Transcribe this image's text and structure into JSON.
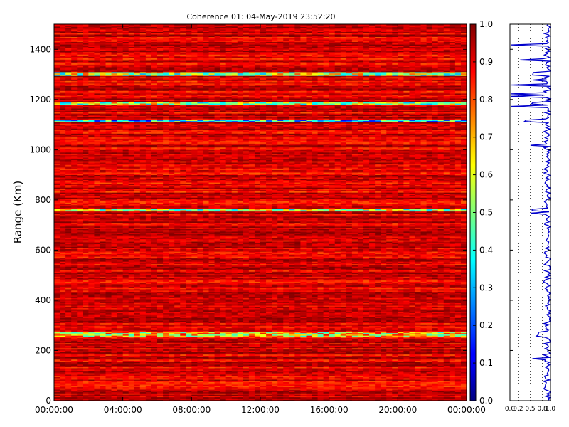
{
  "chart_data": [
    {
      "type": "heatmap",
      "title": "Coherence 01: 04-May-2019 23:52:20",
      "xlabel": "",
      "ylabel": "Range (Km)",
      "xlim": [
        "00:00:00",
        "24:00:00"
      ],
      "ylim": [
        0,
        1500
      ],
      "x_ticks": [
        "00:00:00",
        "04:00:00",
        "08:00:00",
        "12:00:00",
        "16:00:00",
        "20:00:00",
        "00:00:00"
      ],
      "y_ticks": [
        0,
        200,
        400,
        600,
        800,
        1000,
        1200,
        1400
      ],
      "value_range": [
        0.0,
        1.0
      ],
      "colormap": "jet",
      "low_coherence_bands_km": [
        {
          "range_km": [
            1294,
            1308
          ],
          "mean_value": 0.55
        },
        {
          "range_km": [
            1180,
            1192
          ],
          "mean_value": 0.55
        },
        {
          "range_km": [
            1110,
            1122
          ],
          "mean_value": 0.35
        },
        {
          "range_km": [
            755,
            765
          ],
          "mean_value": 0.55
        },
        {
          "range_km": [
            255,
            275
          ],
          "mean_value": 0.65
        }
      ]
    },
    {
      "type": "colorbar",
      "ticks": [
        "0.0",
        "0.1",
        "0.2",
        "0.3",
        "0.4",
        "0.5",
        "0.6",
        "0.7",
        "0.8",
        "0.9",
        "1.0"
      ],
      "range": [
        0.0,
        1.0
      ]
    },
    {
      "type": "line",
      "xlim": [
        0.0,
        1.0
      ],
      "x_ticks": [
        "0.0",
        "0.2",
        "0.5",
        "0.8",
        "1.0"
      ],
      "ylim": [
        0,
        1500
      ],
      "color": "#0000cc",
      "grid": "vertical dotted"
    }
  ]
}
